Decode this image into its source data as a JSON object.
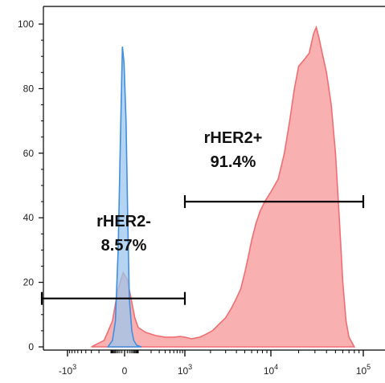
{
  "chart_data": {
    "type": "area",
    "title": "",
    "xlabel": "",
    "ylabel": "",
    "x_scale": "biexponential",
    "ylim": [
      0,
      100
    ],
    "yticks": [
      0,
      20,
      40,
      60,
      80,
      100
    ],
    "ytick_labels": [
      "0",
      "20",
      "40",
      "60",
      "80",
      "100"
    ],
    "xticks": [
      {
        "value": -1000,
        "base": "-10",
        "exp": "3"
      },
      {
        "value": 0,
        "base": "0",
        "exp": ""
      },
      {
        "value": 1000,
        "base": "10",
        "exp": "3"
      },
      {
        "value": 10000,
        "base": "10",
        "exp": "4"
      },
      {
        "value": 100000,
        "base": "10",
        "exp": "5"
      }
    ],
    "series": [
      {
        "color": "#f26d73",
        "fill": "#f7a7a9",
        "points": [
          [
            -300,
            0
          ],
          [
            -150,
            2
          ],
          [
            -80,
            8
          ],
          [
            -30,
            18
          ],
          [
            -5,
            23
          ],
          [
            10,
            21
          ],
          [
            30,
            15
          ],
          [
            60,
            9
          ],
          [
            100,
            6
          ],
          [
            150,
            4.5
          ],
          [
            250,
            3.5
          ],
          [
            400,
            3
          ],
          [
            600,
            3
          ],
          [
            800,
            3.2
          ],
          [
            1000,
            3
          ],
          [
            1200,
            2.5
          ],
          [
            1500,
            3
          ],
          [
            1800,
            4
          ],
          [
            2100,
            5
          ],
          [
            2500,
            7
          ],
          [
            3000,
            9
          ],
          [
            3500,
            12
          ],
          [
            4000,
            15
          ],
          [
            4500,
            18
          ],
          [
            5000,
            23
          ],
          [
            5500,
            28
          ],
          [
            6000,
            33
          ],
          [
            6700,
            38
          ],
          [
            7500,
            42
          ],
          [
            8500,
            45
          ],
          [
            10000,
            48
          ],
          [
            12000,
            52
          ],
          [
            14000,
            60
          ],
          [
            16000,
            70
          ],
          [
            18000,
            80
          ],
          [
            20000,
            87
          ],
          [
            23000,
            89
          ],
          [
            26000,
            91
          ],
          [
            29000,
            97
          ],
          [
            31000,
            99
          ],
          [
            33000,
            96
          ],
          [
            36000,
            91
          ],
          [
            40000,
            85
          ],
          [
            45000,
            75
          ],
          [
            50000,
            60
          ],
          [
            55000,
            40
          ],
          [
            60000,
            20
          ],
          [
            65000,
            8
          ],
          [
            70000,
            3
          ],
          [
            80000,
            0
          ]
        ]
      },
      {
        "color": "#3f8fe0",
        "fill": "#9cc6ee",
        "points": [
          [
            -120,
            0
          ],
          [
            -80,
            2
          ],
          [
            -50,
            8
          ],
          [
            -30,
            30
          ],
          [
            -15,
            70
          ],
          [
            -8,
            93
          ],
          [
            -2,
            88
          ],
          [
            5,
            70
          ],
          [
            12,
            40
          ],
          [
            20,
            15
          ],
          [
            35,
            5
          ],
          [
            50,
            2
          ],
          [
            80,
            0.5
          ],
          [
            120,
            0
          ]
        ]
      }
    ],
    "gates": [
      {
        "label": "rHER2-",
        "percent": "8.57%",
        "x_from": -10000,
        "x_to": 1000,
        "y": 15
      },
      {
        "label": "rHER2+",
        "percent": "91.4%",
        "x_from": 1000,
        "x_to": 100000,
        "y": 45
      }
    ]
  }
}
